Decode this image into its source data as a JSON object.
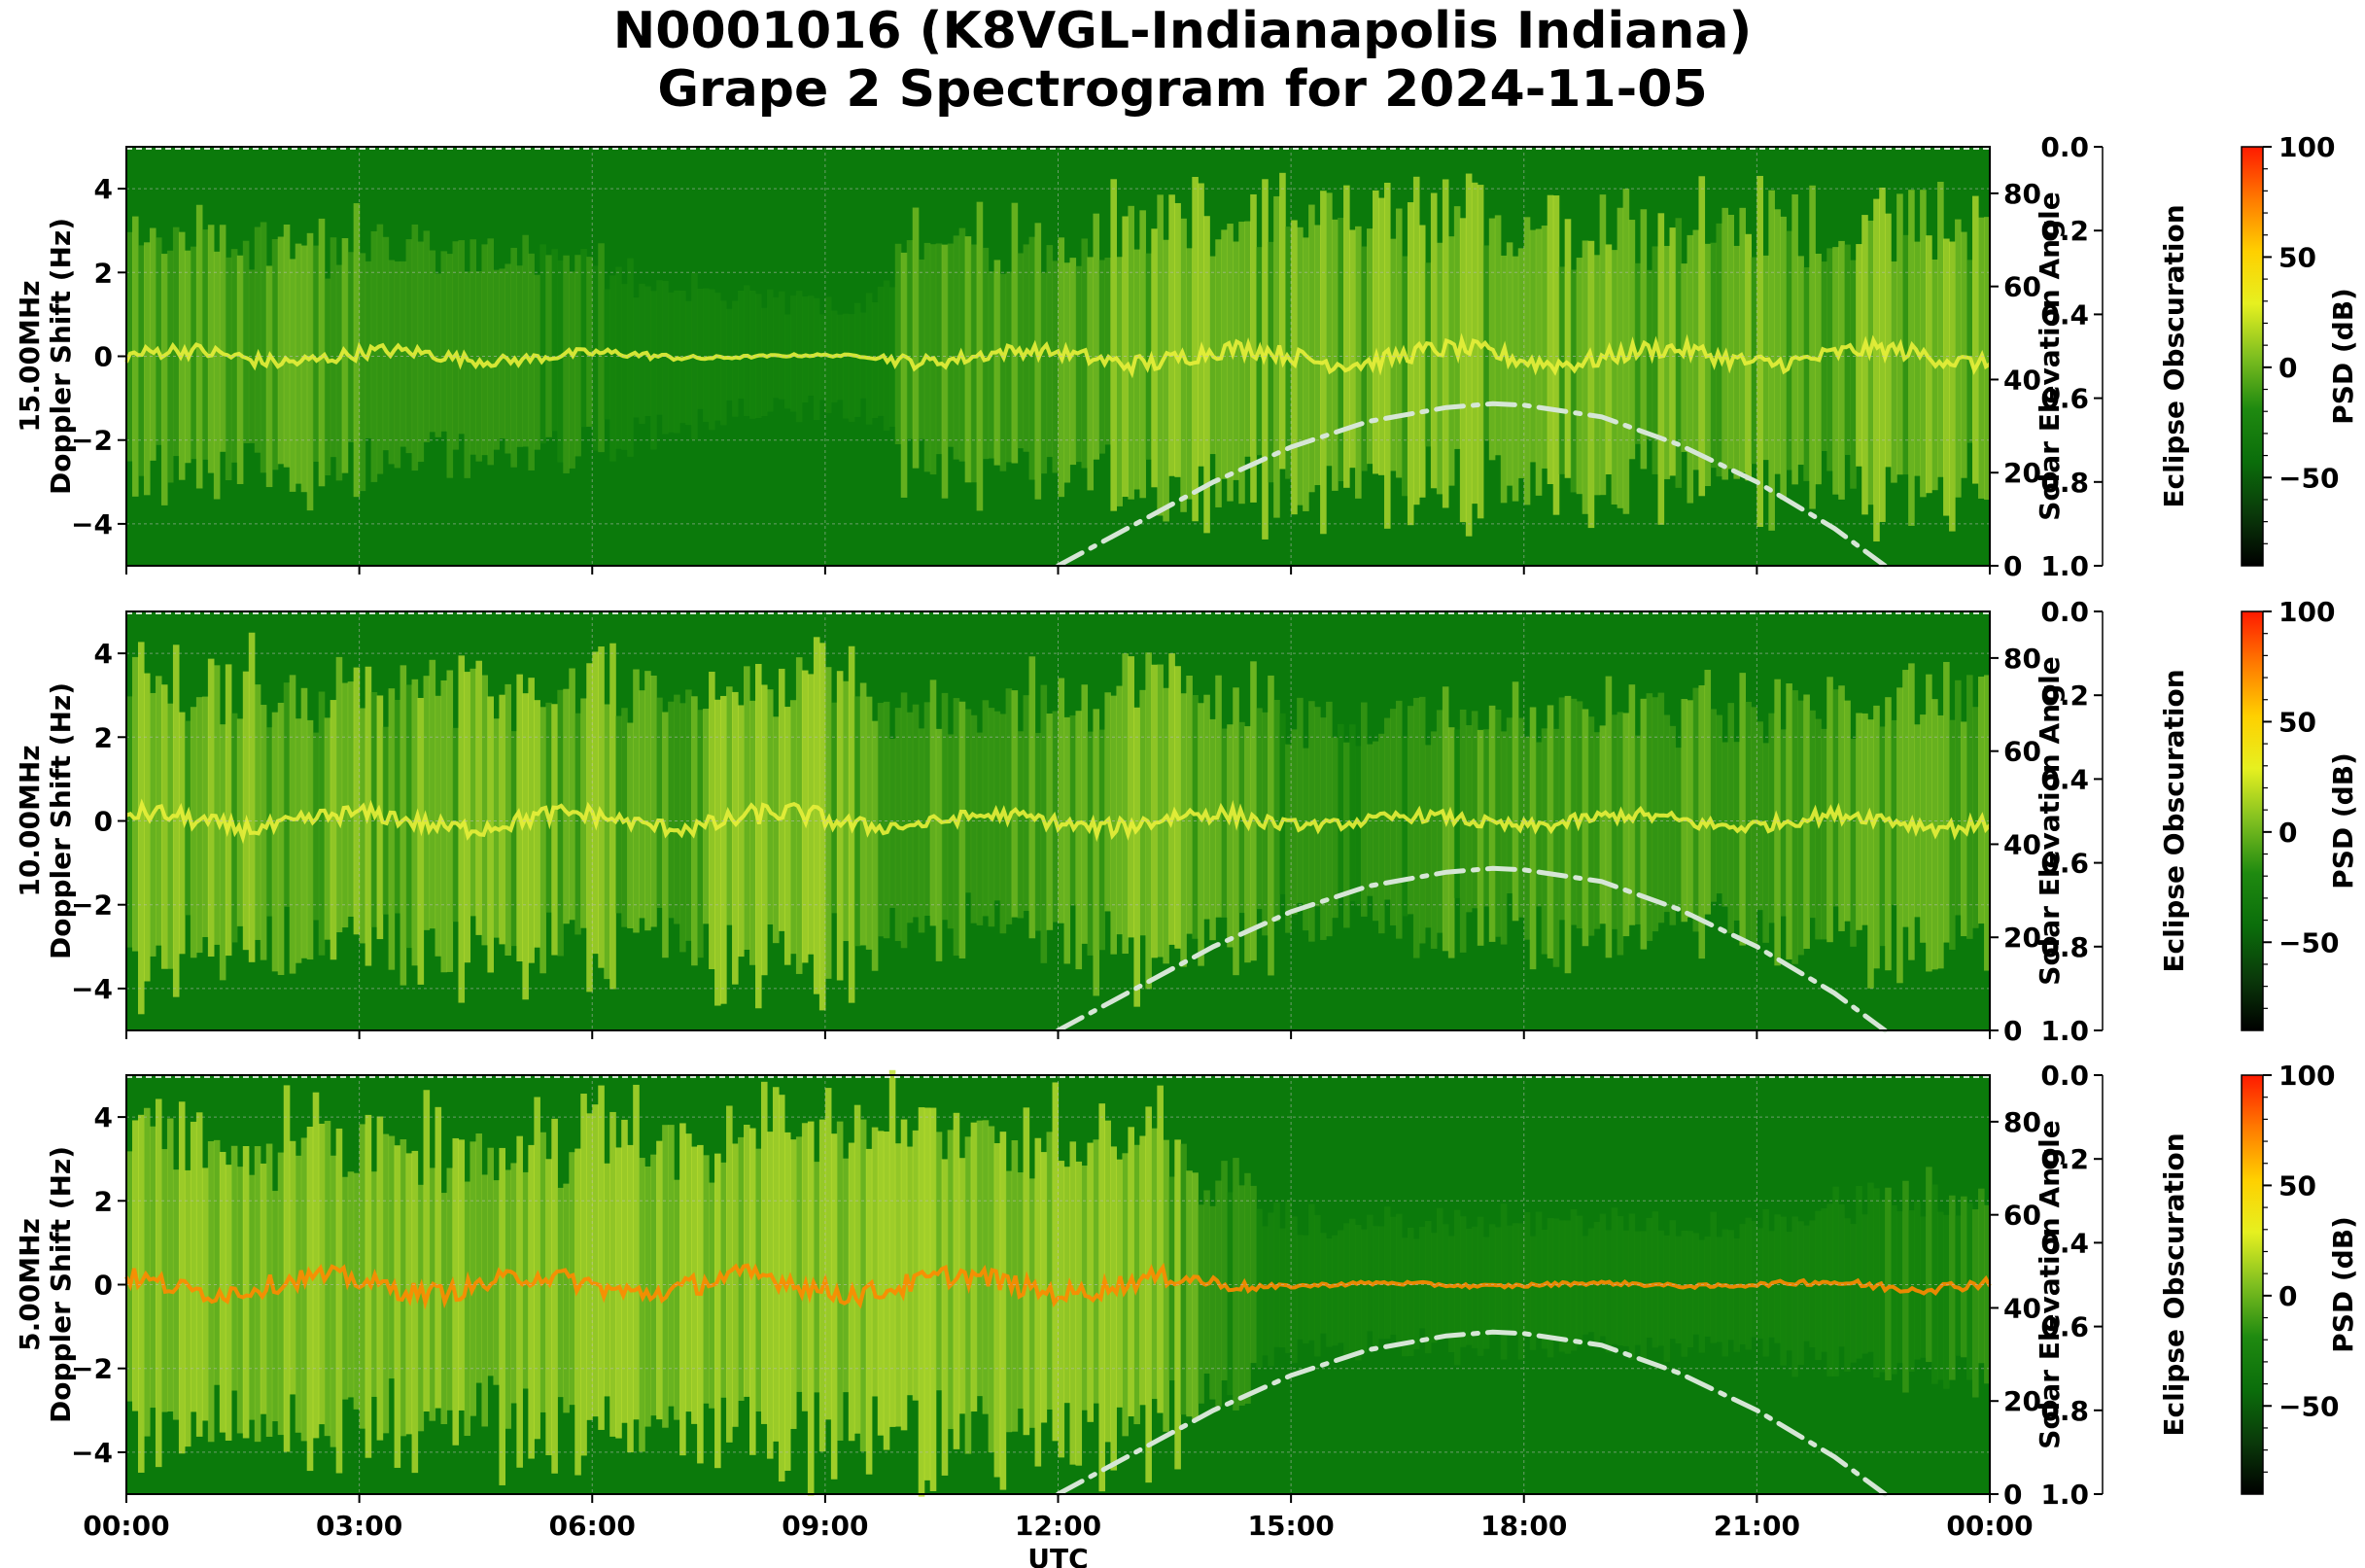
{
  "figure": {
    "title_line1": "N0001016 (K8VGL-Indianapolis Indiana)",
    "title_line2": "Grape 2 Spectrogram for 2024-11-05"
  },
  "colors": {
    "cmap": [
      "#000000",
      "#0a3a0a",
      "#0b6e0b",
      "#1f8a10",
      "#7fbf20",
      "#e6f020",
      "#ffd000",
      "#ff7a00",
      "#ff1a00"
    ],
    "elevation_curve": "#d6e6d6"
  },
  "chart_data": [
    {
      "type": "heatmap",
      "name": "15.00MHz",
      "ylabel": "15.00MHz\nDoppler Shift (Hz)",
      "xlabel": "",
      "x_ticks": [
        "00:00",
        "03:00",
        "06:00",
        "09:00",
        "12:00",
        "15:00",
        "18:00",
        "21:00",
        "00:00"
      ],
      "xlim_hours": [
        0,
        24
      ],
      "ylim": [
        -5,
        5
      ],
      "y_ticks": [
        -4,
        -2,
        0,
        2,
        4
      ],
      "grid": true,
      "right_axis": {
        "label": "Solar Elevation Angle",
        "ylim": [
          0,
          90
        ],
        "ticks": [
          0,
          20,
          40,
          60,
          80
        ]
      },
      "eclipse_axis": {
        "label": "Eclipse Obscuration",
        "ylim": [
          1.0,
          0.0
        ],
        "ticks": [
          "0.0",
          "0.2",
          "0.4",
          "0.6",
          "0.8",
          "1.0"
        ]
      },
      "colorbar": {
        "label": "PSD (dB)",
        "range": [
          -90,
          100
        ],
        "ticks": [
          -50,
          0,
          50,
          100
        ],
        "tick_labels": [
          "−50",
          "0",
          "50",
          "100"
        ]
      },
      "solar_elevation_curve": {
        "hours": [
          12.0,
          13.0,
          14.0,
          15.0,
          16.0,
          17.0,
          17.6,
          18.0,
          19.0,
          20.0,
          21.0,
          22.0,
          22.65
        ],
        "degrees": [
          0,
          9,
          18,
          25.5,
          31,
          34,
          34.8,
          34.5,
          32,
          26,
          18,
          8,
          0
        ]
      }
    },
    {
      "type": "heatmap",
      "name": "10.00MHz",
      "ylabel": "10.00MHz\nDoppler Shift (Hz)",
      "xlabel": "",
      "x_ticks": [
        "00:00",
        "03:00",
        "06:00",
        "09:00",
        "12:00",
        "15:00",
        "18:00",
        "21:00",
        "00:00"
      ],
      "xlim_hours": [
        0,
        24
      ],
      "ylim": [
        -5,
        5
      ],
      "y_ticks": [
        -4,
        -2,
        0,
        2,
        4
      ],
      "grid": true,
      "right_axis": {
        "label": "Solar Elevation Angle",
        "ylim": [
          0,
          90
        ],
        "ticks": [
          0,
          20,
          40,
          60,
          80
        ]
      },
      "eclipse_axis": {
        "label": "Eclipse Obscuration",
        "ylim": [
          1.0,
          0.0
        ],
        "ticks": [
          "0.0",
          "0.2",
          "0.4",
          "0.6",
          "0.8",
          "1.0"
        ]
      },
      "colorbar": {
        "label": "PSD (dB)",
        "range": [
          -90,
          100
        ],
        "ticks": [
          -50,
          0,
          50,
          100
        ],
        "tick_labels": [
          "−50",
          "0",
          "50",
          "100"
        ]
      },
      "solar_elevation_curve": {
        "hours": [
          12.0,
          13.0,
          14.0,
          15.0,
          16.0,
          17.0,
          17.6,
          18.0,
          19.0,
          20.0,
          21.0,
          22.0,
          22.65
        ],
        "degrees": [
          0,
          9,
          18,
          25.5,
          31,
          34,
          34.8,
          34.5,
          32,
          26,
          18,
          8,
          0
        ]
      }
    },
    {
      "type": "heatmap",
      "name": "5.00MHz",
      "ylabel": "5.00MHz\nDoppler Shift (Hz)",
      "xlabel": "UTC",
      "x_ticks": [
        "00:00",
        "03:00",
        "06:00",
        "09:00",
        "12:00",
        "15:00",
        "18:00",
        "21:00",
        "00:00"
      ],
      "xlim_hours": [
        0,
        24
      ],
      "ylim": [
        -5,
        5
      ],
      "y_ticks": [
        -4,
        -2,
        0,
        2,
        4
      ],
      "grid": true,
      "right_axis": {
        "label": "Solar Elevation Angle",
        "ylim": [
          0,
          90
        ],
        "ticks": [
          0,
          20,
          40,
          60,
          80
        ]
      },
      "eclipse_axis": {
        "label": "Eclipse Obscuration",
        "ylim": [
          1.0,
          0.0
        ],
        "ticks": [
          "0.0",
          "0.2",
          "0.4",
          "0.6",
          "0.8",
          "1.0"
        ]
      },
      "colorbar": {
        "label": "PSD (dB)",
        "range": [
          -90,
          100
        ],
        "ticks": [
          -50,
          0,
          50,
          100
        ],
        "tick_labels": [
          "−50",
          "0",
          "50",
          "100"
        ]
      },
      "solar_elevation_curve": {
        "hours": [
          12.0,
          13.0,
          14.0,
          15.0,
          16.0,
          17.0,
          17.6,
          18.0,
          19.0,
          20.0,
          21.0,
          22.0,
          22.65
        ],
        "degrees": [
          0,
          9,
          18,
          25.5,
          31,
          34,
          34.8,
          34.5,
          32,
          26,
          18,
          8,
          0
        ]
      }
    }
  ]
}
